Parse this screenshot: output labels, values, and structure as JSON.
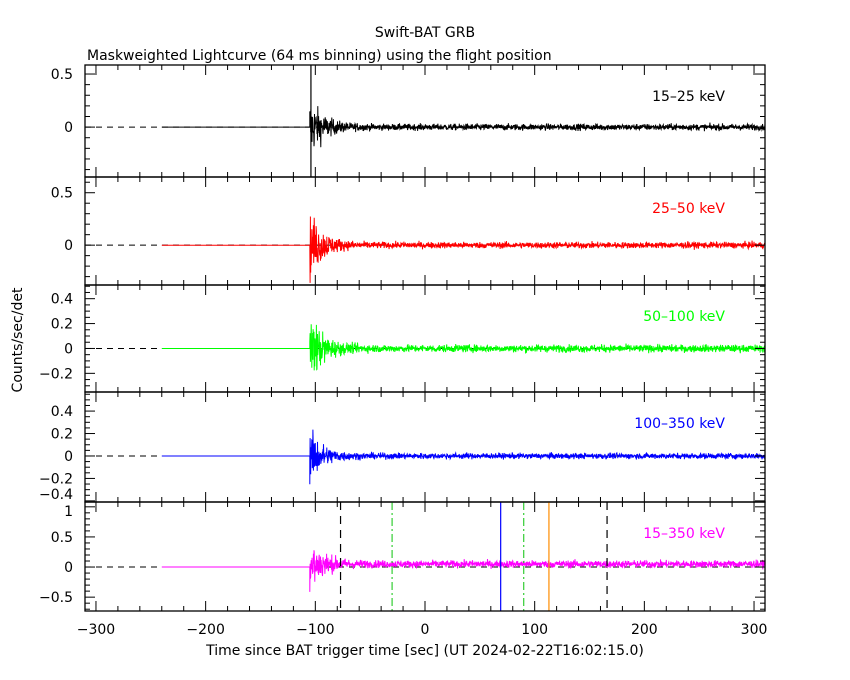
{
  "chart_data": {
    "type": "line",
    "title": "Swift-BAT GRB",
    "subtitle": "Maskweighted Lightcurve (64 ms binning) using the flight position",
    "xlabel": "Time since BAT trigger time [sec] (UT 2024-02-22T16:02:15.0)",
    "ylabel": "Counts/sec/det",
    "xlim": [
      -310,
      310
    ],
    "xticks": [
      -300,
      -200,
      -100,
      0,
      100,
      200,
      300
    ],
    "xtick_labels": [
      "−300",
      "−200",
      "−100",
      "0",
      "100",
      "200",
      "300"
    ],
    "bin_seconds": 0.064,
    "data_start": -240,
    "signal_start": -105,
    "panels": [
      {
        "name": "15-25 keV",
        "label": "15–25 keV",
        "color": "#000000",
        "ylim": [
          -0.47,
          0.585
        ],
        "yticks": [
          0,
          0.5
        ],
        "ytick_labels": [
          "0",
          "0.5"
        ],
        "noise_late": 0.035,
        "noise_early": 0.35
      },
      {
        "name": "25-50 keV",
        "label": "25–50 keV",
        "color": "#ff0000",
        "ylim": [
          -0.38,
          0.65
        ],
        "yticks": [
          0,
          0.5
        ],
        "ytick_labels": [
          "0",
          "0.5"
        ],
        "noise_late": 0.035,
        "noise_early": 0.4
      },
      {
        "name": "50-100 keV",
        "label": "50–100 keV",
        "color": "#00ff00",
        "ylim": [
          -0.35,
          0.51
        ],
        "yticks": [
          -0.2,
          0,
          0.2,
          0.4
        ],
        "ytick_labels": [
          "−0.2",
          "0",
          "0.2",
          "0.4"
        ],
        "noise_late": 0.035,
        "noise_early": 0.35
      },
      {
        "name": "100-350 keV",
        "label": "100–350 keV",
        "color": "#0000ff",
        "ylim": [
          -0.41,
          0.57
        ],
        "yticks": [
          -0.4,
          -0.2,
          0,
          0.2,
          0.4
        ],
        "ytick_labels": [
          "−0.4",
          "−0.2",
          "0",
          "0.2",
          "0.4"
        ],
        "noise_late": 0.03,
        "noise_early": 0.3
      },
      {
        "name": "15-350 keV",
        "label": "15–350 keV",
        "color": "#ff00ff",
        "ylim": [
          -0.73,
          1.08
        ],
        "yticks": [
          -0.5,
          0,
          0.5,
          1
        ],
        "ytick_labels": [
          "−0.5",
          "0",
          "0.5",
          "1"
        ],
        "noise_late": 0.07,
        "noise_early": 0.6,
        "offset_late": 0.05
      }
    ],
    "markers": [
      {
        "x": -104,
        "color": "#000000",
        "style": "solid",
        "panel": "top"
      },
      {
        "x": -77,
        "color": "#000000",
        "style": "dashed",
        "panel": "bottom"
      },
      {
        "x": 166,
        "color": "#000000",
        "style": "dashed",
        "panel": "bottom"
      },
      {
        "x": -30,
        "color": "#33cc33",
        "style": "dashdot",
        "panel": "bottom"
      },
      {
        "x": 90,
        "color": "#33cc33",
        "style": "dashdot",
        "panel": "bottom"
      },
      {
        "x": 69,
        "color": "#0000ff",
        "style": "solid",
        "panel": "bottom"
      },
      {
        "x": 113,
        "color": "#ff8c00",
        "style": "solid",
        "panel": "bottom"
      }
    ]
  }
}
